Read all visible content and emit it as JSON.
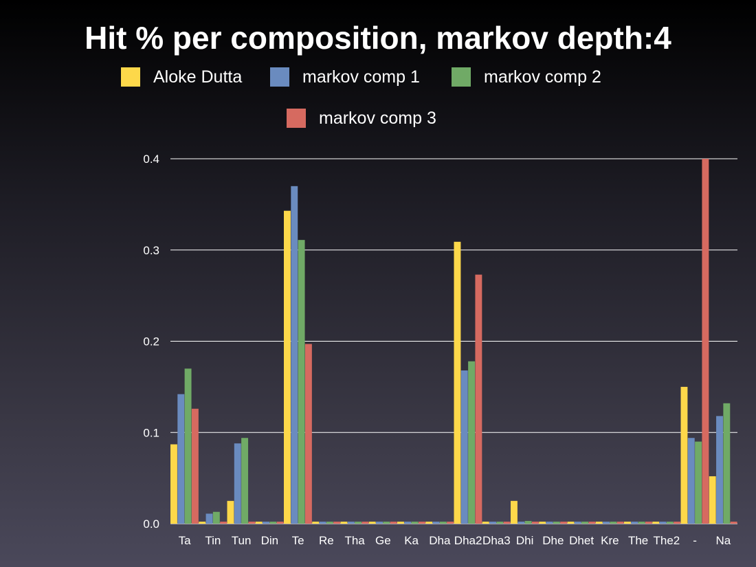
{
  "chart_data": {
    "type": "bar",
    "title": "Hit % per composition, markov depth:4",
    "xlabel": "",
    "ylabel": "",
    "ylim": [
      0,
      0.4
    ],
    "yticks": [
      "0.0",
      "0.1",
      "0.2",
      "0.3",
      "0.4"
    ],
    "grid": true,
    "legend_position": "top",
    "categories": [
      "Ta",
      "Tin",
      "Tun",
      "Din",
      "Te",
      "Re",
      "Tha",
      "Ge",
      "Ka",
      "Dha",
      "Dha2",
      "Dha3",
      "Dhi",
      "Dhe",
      "Dhet",
      "Kre",
      "The",
      "The2",
      "-",
      "Na"
    ],
    "series": [
      {
        "name": "Aloke Dutta",
        "color": "#fdd84a",
        "values": [
          0.087,
          0,
          0.025,
          0,
          0.343,
          0,
          0,
          0,
          0,
          0,
          0.309,
          0,
          0.025,
          0,
          0,
          0,
          0,
          0,
          0.15,
          0.052
        ]
      },
      {
        "name": "markov comp 1",
        "color": "#6a8bbf",
        "values": [
          0.142,
          0.011,
          0.088,
          0,
          0.37,
          0,
          0,
          0,
          0,
          0,
          0.168,
          0,
          0,
          0,
          0,
          0,
          0,
          0,
          0.094,
          0.118
        ]
      },
      {
        "name": "markov comp 2",
        "color": "#70aa66",
        "values": [
          0.17,
          0.013,
          0.094,
          0,
          0.311,
          0,
          0,
          0,
          0,
          0,
          0.178,
          0,
          0.003,
          0,
          0,
          0,
          0,
          0,
          0.09,
          0.132
        ]
      },
      {
        "name": "markov comp 3",
        "color": "#d66a60",
        "values": [
          0.126,
          0,
          0,
          0,
          0.197,
          0,
          0,
          0,
          0,
          0,
          0.273,
          0,
          0,
          0,
          0,
          0,
          0,
          0,
          0.4,
          0
        ]
      }
    ]
  }
}
